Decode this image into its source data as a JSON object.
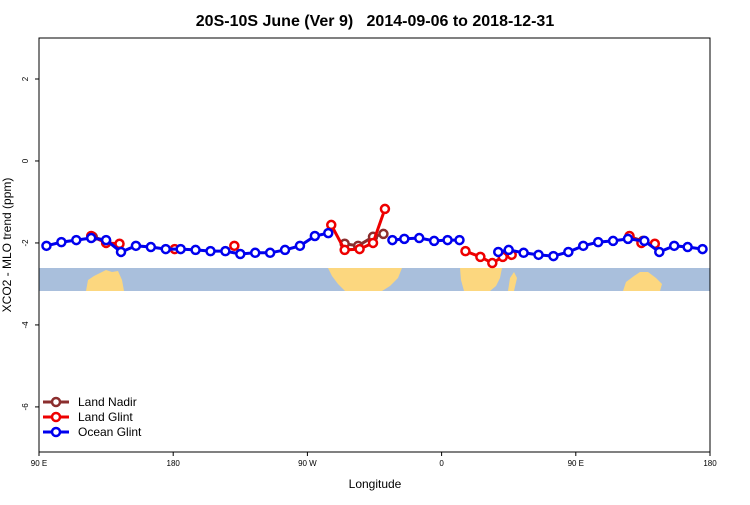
{
  "chart_data": {
    "type": "line",
    "title": "20S-10S June (Ver 9)   2014-09-06 to 2018-12-31",
    "xlabel": "Longitude",
    "ylabel": "XCO2 - MLO trend (ppm)",
    "xlim": [
      90,
      540
    ],
    "ylim": [
      -7.1,
      3
    ],
    "xticks": [
      {
        "value": 90,
        "label": "90 E"
      },
      180,
      {
        "value": 270,
        "label": "90 W"
      },
      {
        "value": 360,
        "label": "0"
      },
      {
        "value": 450,
        "label": "90 E"
      },
      {
        "value": 540,
        "label": "180"
      }
    ],
    "yticks": [
      -6,
      -4,
      -2,
      0,
      2
    ],
    "legend": "bottom-left",
    "series": [
      {
        "name": "Land Nadir",
        "color": "#8b2e2e",
        "x": [
          126,
          135,
          null,
          295,
          304,
          314,
          321,
          null,
          486,
          495
        ],
        "values": [
          -1.85,
          -1.95,
          null,
          -2.02,
          -2.07,
          -1.85,
          -1.78,
          null,
          -1.85,
          -1.95
        ]
      },
      {
        "name": "Land Glint",
        "color": "#ee0000",
        "x": [
          125,
          135,
          144,
          null,
          181,
          null,
          221,
          null,
          286,
          295,
          305,
          314,
          322,
          null,
          376,
          386,
          394,
          401,
          407,
          null,
          486,
          494,
          503
        ],
        "values": [
          -1.83,
          -2.0,
          -2.02,
          null,
          -2.15,
          null,
          -2.07,
          null,
          -1.56,
          -2.17,
          -2.15,
          -2.0,
          -1.17,
          null,
          -2.2,
          -2.34,
          -2.49,
          -2.34,
          -2.29,
          null,
          -1.83,
          -2.0,
          -2.02
        ]
      },
      {
        "name": "Ocean Glint",
        "color": "#0000ee",
        "x": [
          95,
          105,
          115,
          125,
          135,
          145,
          155,
          165,
          175,
          185,
          195,
          205,
          215,
          225,
          235,
          245,
          255,
          265,
          275,
          284,
          null,
          327,
          335,
          345,
          355,
          364,
          372,
          null,
          398,
          405,
          415,
          425,
          435,
          445,
          455,
          465,
          475,
          485,
          496,
          506,
          516,
          525,
          535
        ],
        "values": [
          -2.07,
          -1.98,
          -1.93,
          -1.88,
          -1.93,
          -2.22,
          -2.07,
          -2.1,
          -2.15,
          -2.15,
          -2.17,
          -2.2,
          -2.2,
          -2.27,
          -2.24,
          -2.24,
          -2.17,
          -2.07,
          -1.83,
          -1.76,
          null,
          -1.93,
          -1.9,
          -1.88,
          -1.95,
          -1.93,
          -1.93,
          null,
          -2.22,
          -2.17,
          -2.24,
          -2.29,
          -2.32,
          -2.22,
          -2.07,
          -1.98,
          -1.95,
          -1.9,
          -1.95,
          -2.22,
          -2.07,
          -2.1,
          -2.15
        ]
      }
    ]
  }
}
